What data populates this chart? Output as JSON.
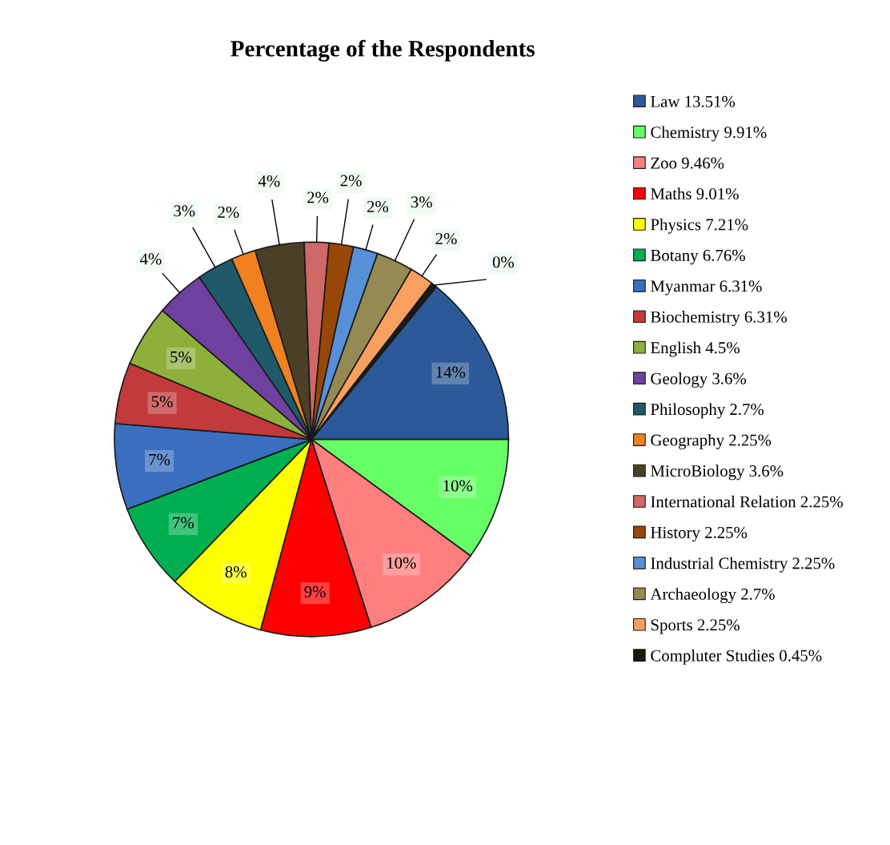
{
  "chart_data": {
    "type": "pie",
    "title": "Percentage of the Respondents",
    "categories": [
      "Law 13.51%",
      "Chemistry 9.91%",
      "Zoo 9.46%",
      "Maths 9.01%",
      "Physics 7.21%",
      "Botany 6.76%",
      "Myanmar 6.31%",
      "Biochemistry 6.31%",
      "English 4.5%",
      "Geology 3.6%",
      "Philosophy 2.7%",
      "Geography 2.25%",
      "MicroBiology 3.6%",
      "International Relation 2.25%",
      "History 2.25%",
      "Industrial Chemistry 2.25%",
      "Archaeology 2.7%",
      "Sports 2.25%",
      "Compluter Studies 0.45%"
    ],
    "values": [
      14,
      10,
      10,
      9,
      8,
      7,
      7,
      5,
      5,
      4,
      3,
      2,
      4,
      2,
      2,
      2,
      3,
      2,
      0.45
    ],
    "value_labels": [
      "14%",
      "10%",
      "10%",
      "9%",
      "8%",
      "7%",
      "7%",
      "5%",
      "5%",
      "4%",
      "3%",
      "2%",
      "4%",
      "2%",
      "2%",
      "2%",
      "3%",
      "2%",
      "0%"
    ],
    "colors": [
      "#2c5a98",
      "#66ff66",
      "#ff7f7f",
      "#ff0000",
      "#ffff00",
      "#00b050",
      "#3a6fbf",
      "#c23a3a",
      "#8db03c",
      "#7040a0",
      "#1f5a6a",
      "#f08020",
      "#4a4028",
      "#d06868",
      "#974806",
      "#5590d8",
      "#948a54",
      "#f9a060",
      "#1a1a10"
    ],
    "legend": "right"
  }
}
